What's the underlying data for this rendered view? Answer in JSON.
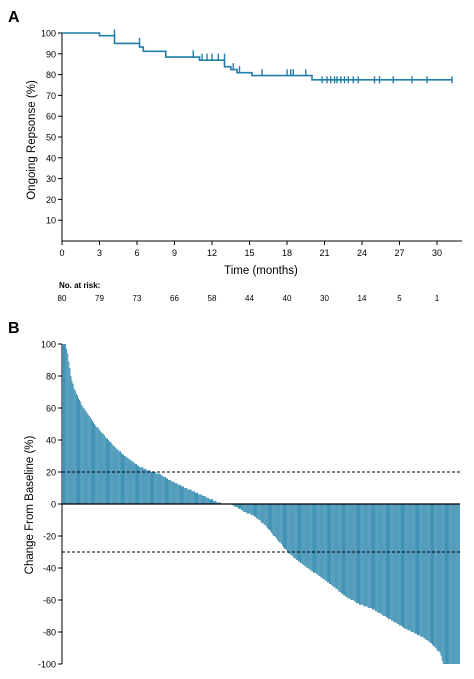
{
  "chart_data": [
    {
      "panel": "A",
      "type": "line",
      "step": true,
      "ylabel": "Ongoing Repsonse (%)",
      "xlabel": "Time (months)",
      "xlim": [
        0,
        32
      ],
      "ylim": [
        0,
        100
      ],
      "xticks": [
        0,
        3,
        6,
        9,
        12,
        15,
        18,
        21,
        24,
        27,
        30
      ],
      "yticks": [
        10,
        20,
        30,
        40,
        50,
        60,
        70,
        80,
        90,
        100
      ],
      "color": "#1f7fa8",
      "series": [
        {
          "x": [
            0,
            3,
            3,
            4.2,
            4.2,
            6.2,
            6.2,
            6.5,
            6.5,
            8.3,
            8.3,
            11.0,
            11.0,
            13.0,
            13.0,
            13.5,
            13.5,
            14.0,
            14.0,
            15.2,
            15.2,
            20.0,
            20.0,
            31.2
          ],
          "y": [
            100,
            100,
            98.7,
            98.7,
            95.0,
            95.0,
            93.2,
            93.2,
            91.2,
            91.2,
            88.4,
            88.4,
            86.9,
            86.9,
            83.8,
            83.8,
            82.4,
            82.4,
            80.9,
            80.9,
            79.5,
            79.5,
            77.5,
            77.5
          ]
        }
      ],
      "censored": [
        {
          "x": 4.2,
          "y": 100
        },
        {
          "x": 6.2,
          "y": 96
        },
        {
          "x": 10.5,
          "y": 90
        },
        {
          "x": 11.2,
          "y": 88.4
        },
        {
          "x": 11.6,
          "y": 88.4
        },
        {
          "x": 12.0,
          "y": 88.4
        },
        {
          "x": 12.5,
          "y": 88.4
        },
        {
          "x": 13.0,
          "y": 88.4
        },
        {
          "x": 13.7,
          "y": 83.8
        },
        {
          "x": 14.2,
          "y": 82.4
        },
        {
          "x": 16.0,
          "y": 80.9
        },
        {
          "x": 18.0,
          "y": 80.9
        },
        {
          "x": 18.3,
          "y": 80.9
        },
        {
          "x": 18.5,
          "y": 80.9
        },
        {
          "x": 19.5,
          "y": 80.9
        },
        {
          "x": 20.8,
          "y": 77.5
        },
        {
          "x": 21.2,
          "y": 77.5
        },
        {
          "x": 21.5,
          "y": 77.5
        },
        {
          "x": 21.8,
          "y": 77.5
        },
        {
          "x": 22.0,
          "y": 77.5
        },
        {
          "x": 22.3,
          "y": 77.5
        },
        {
          "x": 22.6,
          "y": 77.5
        },
        {
          "x": 22.9,
          "y": 77.5
        },
        {
          "x": 23.3,
          "y": 77.5
        },
        {
          "x": 23.7,
          "y": 77.5
        },
        {
          "x": 25.0,
          "y": 77.5
        },
        {
          "x": 25.4,
          "y": 77.5
        },
        {
          "x": 26.5,
          "y": 77.5
        },
        {
          "x": 28.0,
          "y": 77.5
        },
        {
          "x": 29.2,
          "y": 77.5
        },
        {
          "x": 31.2,
          "y": 77.5
        }
      ],
      "risk_table": {
        "label": "No. at risk:",
        "times": [
          0,
          3,
          6,
          9,
          12,
          15,
          18,
          21,
          24,
          27,
          30
        ],
        "counts": [
          "80",
          "79",
          "73",
          "66",
          "58",
          "44",
          "40",
          "30",
          "14",
          "5",
          "1"
        ]
      }
    },
    {
      "panel": "B",
      "type": "bar",
      "ylabel": "Change From Baseline (%)",
      "ylim": [
        -100,
        100
      ],
      "yticks": [
        -100,
        -80,
        -60,
        -40,
        -20,
        0,
        20,
        40,
        60,
        80,
        100
      ],
      "reference_lines": [
        20,
        -30
      ],
      "bar_color": "#1f7fa8",
      "knots": [
        [
          0,
          100
        ],
        [
          3,
          100
        ],
        [
          5,
          94
        ],
        [
          8,
          80
        ],
        [
          11,
          72
        ],
        [
          15,
          66
        ],
        [
          20,
          60
        ],
        [
          30,
          50
        ],
        [
          40,
          42
        ],
        [
          50,
          35
        ],
        [
          60,
          29
        ],
        [
          70,
          24
        ],
        [
          80,
          21
        ],
        [
          90,
          19
        ],
        [
          100,
          15
        ],
        [
          112,
          11
        ],
        [
          125,
          7
        ],
        [
          135,
          4
        ],
        [
          145,
          1
        ],
        [
          150,
          0
        ],
        [
          157,
          0
        ],
        [
          162,
          -2
        ],
        [
          170,
          -5
        ],
        [
          180,
          -8
        ],
        [
          190,
          -14
        ],
        [
          200,
          -22
        ],
        [
          210,
          -30
        ],
        [
          220,
          -36
        ],
        [
          235,
          -43
        ],
        [
          250,
          -50
        ],
        [
          262,
          -57
        ],
        [
          275,
          -62
        ],
        [
          290,
          -66
        ],
        [
          305,
          -72
        ],
        [
          320,
          -78
        ],
        [
          335,
          -83
        ],
        [
          345,
          -88
        ],
        [
          352,
          -93
        ],
        [
          355,
          -100
        ],
        [
          370,
          -100
        ]
      ]
    }
  ],
  "panels": {
    "a_label": "A",
    "b_label": "B"
  }
}
